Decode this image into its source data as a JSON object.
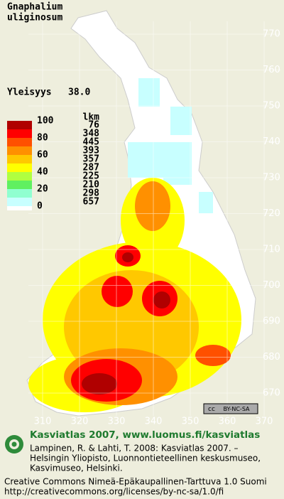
{
  "title": {
    "line1": "Gnaphalium",
    "line2": "uliginosum"
  },
  "frequency": {
    "label": "Yleisyys",
    "value": "38.0"
  },
  "legend": {
    "scale": [
      100,
      80,
      60,
      40,
      20,
      0
    ],
    "header": "lkm",
    "counts": [
      76,
      348,
      445,
      393,
      357,
      287,
      225,
      210,
      298,
      657
    ]
  },
  "grid": {
    "y_labels": [
      770,
      760,
      750,
      740,
      730,
      720,
      710,
      700,
      690,
      680,
      670
    ],
    "x_labels": [
      310,
      320,
      330,
      340,
      350,
      360,
      370
    ]
  },
  "badge": {
    "cc": "cc",
    "license": "BY-NC-SA"
  },
  "footer": {
    "heading": "Kasviatlas 2007, www.luomus.fi/kasviatlas",
    "citation": [
      "Lampinen, R. & Lahti, T. 2008: Kasviatlas 2007. –",
      "Helsingin Yliopisto, Luonnontieteellinen keskusmuseo,",
      "Kasvimuseo, Helsinki."
    ],
    "license": [
      "Creative Commons Nimeä-Epäkaupallinen-Tarttuva 1.0 Suomi",
      "http://creativecommons.org/licenses/by-nc-sa/1.0/fi"
    ]
  }
}
